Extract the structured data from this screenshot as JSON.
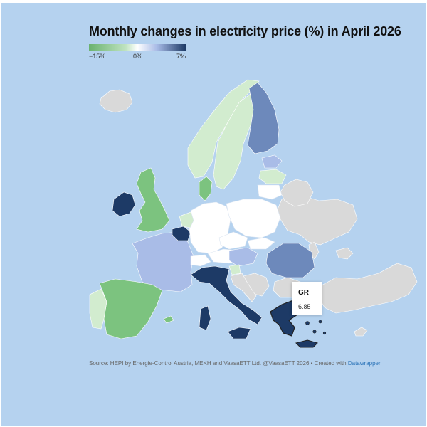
{
  "title": "Monthly changes in electricity price (%) in April 2026",
  "legend": {
    "min_label": "−15%",
    "mid_label": "0%",
    "max_label": "7%",
    "min_value": -15,
    "mid_value": 0,
    "max_value": 7
  },
  "tooltip": {
    "code": "GR",
    "value": "6.85"
  },
  "footer": {
    "source": "Source: HEPI by Energie-Control Austria, MEKH and VaasaETT Ltd. @VaasaETT 2026 • Created with",
    "link": "Datawrapper"
  },
  "colors": {
    "background": "#b5d2ef",
    "no_data": "#d9d9d9",
    "strong_increase": "#1d3a66",
    "moderate_increase": "#6d89bb",
    "slight_increase": "#a9bce7",
    "neutral": "#ffffff",
    "slight_decrease": "#d2eccf",
    "moderate_decrease": "#7cc37f"
  },
  "countries": [
    {
      "code": "GR",
      "value": 6.85
    },
    {
      "code": "IE",
      "tone": "strong_increase"
    },
    {
      "code": "BE",
      "tone": "strong_increase"
    },
    {
      "code": "IT",
      "tone": "strong_increase"
    },
    {
      "code": "FI",
      "tone": "moderate_increase"
    },
    {
      "code": "RO",
      "tone": "moderate_increase"
    },
    {
      "code": "FR",
      "tone": "slight_increase"
    },
    {
      "code": "HU",
      "tone": "slight_increase"
    },
    {
      "code": "EE",
      "tone": "slight_increase"
    },
    {
      "code": "DE",
      "tone": "neutral"
    },
    {
      "code": "PL",
      "tone": "neutral"
    },
    {
      "code": "AT",
      "tone": "neutral"
    },
    {
      "code": "CZ",
      "tone": "neutral"
    },
    {
      "code": "SK",
      "tone": "neutral"
    },
    {
      "code": "LT",
      "tone": "neutral"
    },
    {
      "code": "NO",
      "tone": "slight_decrease"
    },
    {
      "code": "SE",
      "tone": "slight_decrease"
    },
    {
      "code": "GB",
      "tone": "moderate_decrease"
    },
    {
      "code": "ES",
      "tone": "moderate_decrease"
    },
    {
      "code": "DK",
      "tone": "moderate_decrease"
    },
    {
      "code": "PT",
      "tone": "slight_decrease"
    },
    {
      "code": "NL",
      "tone": "slight_decrease"
    },
    {
      "code": "LV",
      "tone": "slight_decrease"
    },
    {
      "code": "SI",
      "tone": "slight_decrease"
    }
  ]
}
